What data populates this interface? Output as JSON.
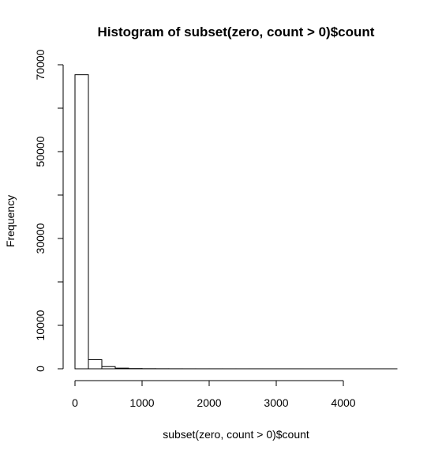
{
  "chart_data": {
    "type": "bar",
    "title": "Histogram of subset(zero, count > 0)$count",
    "xlabel": "subset(zero, count > 0)$count",
    "ylabel": "Frequency",
    "bin_width": 200,
    "bin_start": 0,
    "values": [
      67700,
      2100,
      500,
      150,
      60,
      30,
      20,
      12,
      8,
      6,
      5,
      4,
      3,
      3,
      2,
      2,
      2,
      1,
      1,
      1,
      1,
      1,
      1,
      1
    ],
    "xlim": [
      0,
      4800
    ],
    "ylim": [
      0,
      70000
    ],
    "x_ticks": [
      0,
      1000,
      2000,
      3000,
      4000
    ],
    "x_tick_labels": [
      "0",
      "1000",
      "2000",
      "3000",
      "4000"
    ],
    "y_ticks": [
      0,
      10000,
      20000,
      30000,
      40000,
      50000,
      60000,
      70000
    ],
    "y_tick_labels": [
      "0",
      "10000",
      "30000",
      "50000",
      "70000"
    ],
    "y_tick_label_values": [
      0,
      10000,
      30000,
      50000,
      70000
    ],
    "grid": false,
    "bar_fill": "#ffffff",
    "bar_stroke": "#000000"
  }
}
